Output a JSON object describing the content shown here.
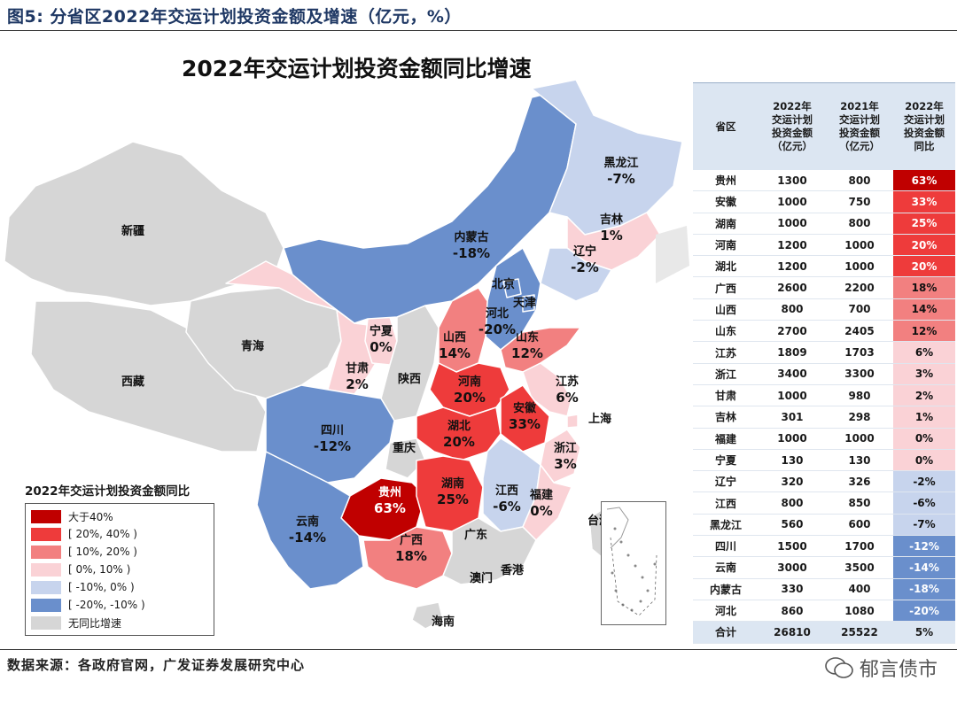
{
  "figure_title": "图5: 分省区2022年交运计划投资金额及增速（亿元，%）",
  "source": "数据来源：各政府官网，广发证券发展研究中心",
  "watermark": "郁言债市",
  "chart_data": {
    "type": "table",
    "map_title": "2022年交运计划投资金额同比增速",
    "legend": {
      "title": "2022年交运计划投资金额同比",
      "items": [
        {
          "label": "大于40%",
          "color": "#c00000"
        },
        {
          "label": "[ 20%, 40% )",
          "color": "#ee3b3b"
        },
        {
          "label": "[ 10%, 20% )",
          "color": "#f28080"
        },
        {
          "label": "[ 0%, 10% )",
          "color": "#fad2d6"
        },
        {
          "label": "[ -10%, 0% )",
          "color": "#c7d4ed"
        },
        {
          "label": "[ -20%, -10% )",
          "color": "#6a8fcc"
        },
        {
          "label": "无同比增速",
          "color": "#d6d6d6"
        }
      ]
    },
    "map_labels": [
      {
        "name": "新疆",
        "value": ""
      },
      {
        "name": "西藏",
        "value": ""
      },
      {
        "name": "青海",
        "value": ""
      },
      {
        "name": "甘肃",
        "value": "2%"
      },
      {
        "name": "宁夏",
        "value": "0%"
      },
      {
        "name": "陕西",
        "value": ""
      },
      {
        "name": "内蒙古",
        "value": "-18%"
      },
      {
        "name": "黑龙江",
        "value": "-7%"
      },
      {
        "name": "吉林",
        "value": "1%"
      },
      {
        "name": "辽宁",
        "value": "-2%"
      },
      {
        "name": "北京",
        "value": ""
      },
      {
        "name": "天津",
        "value": ""
      },
      {
        "name": "河北",
        "value": "-20%"
      },
      {
        "name": "山西",
        "value": "14%"
      },
      {
        "name": "山东",
        "value": "12%"
      },
      {
        "name": "河南",
        "value": "20%"
      },
      {
        "name": "江苏",
        "value": "6%"
      },
      {
        "name": "上海",
        "value": ""
      },
      {
        "name": "安徽",
        "value": "33%"
      },
      {
        "name": "湖北",
        "value": "20%"
      },
      {
        "name": "浙江",
        "value": "3%"
      },
      {
        "name": "四川",
        "value": "-12%"
      },
      {
        "name": "重庆",
        "value": ""
      },
      {
        "name": "贵州",
        "value": "63%"
      },
      {
        "name": "湖南",
        "value": "25%"
      },
      {
        "name": "江西",
        "value": "-6%"
      },
      {
        "name": "福建",
        "value": "0%"
      },
      {
        "name": "台湾",
        "value": ""
      },
      {
        "name": "云南",
        "value": "-14%"
      },
      {
        "name": "广西",
        "value": "18%"
      },
      {
        "name": "广东",
        "value": ""
      },
      {
        "name": "澳门",
        "value": ""
      },
      {
        "name": "香港",
        "value": ""
      },
      {
        "name": "海南",
        "value": ""
      }
    ],
    "table": {
      "headers": [
        "省区",
        "2022年 计划 投资金额 （亿元）",
        "2021年 计划 投资金额 （亿元）",
        "2022年 投资金额 同比"
      ],
      "header_lines": [
        [
          "省区"
        ],
        [
          "2022年",
          "交运计划",
          "投资金额",
          "（亿元）"
        ],
        [
          "2021年",
          "交运计划",
          "投资金额",
          "（亿元）"
        ],
        [
          "2022年",
          "交运计划",
          "投资金额",
          "同比"
        ]
      ],
      "rows": [
        {
          "province": "贵州",
          "y2022": "1300",
          "y2021": "800",
          "yoy": "63%",
          "color": "#c00000"
        },
        {
          "province": "安徽",
          "y2022": "1000",
          "y2021": "750",
          "yoy": "33%",
          "color": "#ee3b3b"
        },
        {
          "province": "湖南",
          "y2022": "1000",
          "y2021": "800",
          "yoy": "25%",
          "color": "#ee3b3b"
        },
        {
          "province": "河南",
          "y2022": "1200",
          "y2021": "1000",
          "yoy": "20%",
          "color": "#ee3b3b"
        },
        {
          "province": "湖北",
          "y2022": "1200",
          "y2021": "1000",
          "yoy": "20%",
          "color": "#ee3b3b"
        },
        {
          "province": "广西",
          "y2022": "2600",
          "y2021": "2200",
          "yoy": "18%",
          "color": "#f28080"
        },
        {
          "province": "山西",
          "y2022": "800",
          "y2021": "700",
          "yoy": "14%",
          "color": "#f28080"
        },
        {
          "province": "山东",
          "y2022": "2700",
          "y2021": "2405",
          "yoy": "12%",
          "color": "#f28080"
        },
        {
          "province": "江苏",
          "y2022": "1809",
          "y2021": "1703",
          "yoy": "6%",
          "color": "#fad2d6"
        },
        {
          "province": "浙江",
          "y2022": "3400",
          "y2021": "3300",
          "yoy": "3%",
          "color": "#fad2d6"
        },
        {
          "province": "甘肃",
          "y2022": "1000",
          "y2021": "980",
          "yoy": "2%",
          "color": "#fad2d6"
        },
        {
          "province": "吉林",
          "y2022": "301",
          "y2021": "298",
          "yoy": "1%",
          "color": "#fad2d6"
        },
        {
          "province": "福建",
          "y2022": "1000",
          "y2021": "1000",
          "yoy": "0%",
          "color": "#fad2d6"
        },
        {
          "province": "宁夏",
          "y2022": "130",
          "y2021": "130",
          "yoy": "0%",
          "color": "#fad2d6"
        },
        {
          "province": "辽宁",
          "y2022": "320",
          "y2021": "326",
          "yoy": "-2%",
          "color": "#c7d4ed"
        },
        {
          "province": "江西",
          "y2022": "800",
          "y2021": "850",
          "yoy": "-6%",
          "color": "#c7d4ed"
        },
        {
          "province": "黑龙江",
          "y2022": "560",
          "y2021": "600",
          "yoy": "-7%",
          "color": "#c7d4ed"
        },
        {
          "province": "四川",
          "y2022": "1500",
          "y2021": "1700",
          "yoy": "-12%",
          "color": "#6a8fcc"
        },
        {
          "province": "云南",
          "y2022": "3000",
          "y2021": "3500",
          "yoy": "-14%",
          "color": "#6a8fcc"
        },
        {
          "province": "内蒙古",
          "y2022": "330",
          "y2021": "400",
          "yoy": "-18%",
          "color": "#6a8fcc"
        },
        {
          "province": "河北",
          "y2022": "860",
          "y2021": "1080",
          "yoy": "-20%",
          "color": "#6a8fcc"
        }
      ],
      "total": {
        "province": "合计",
        "y2022": "26810",
        "y2021": "25522",
        "yoy": "5%"
      }
    }
  }
}
